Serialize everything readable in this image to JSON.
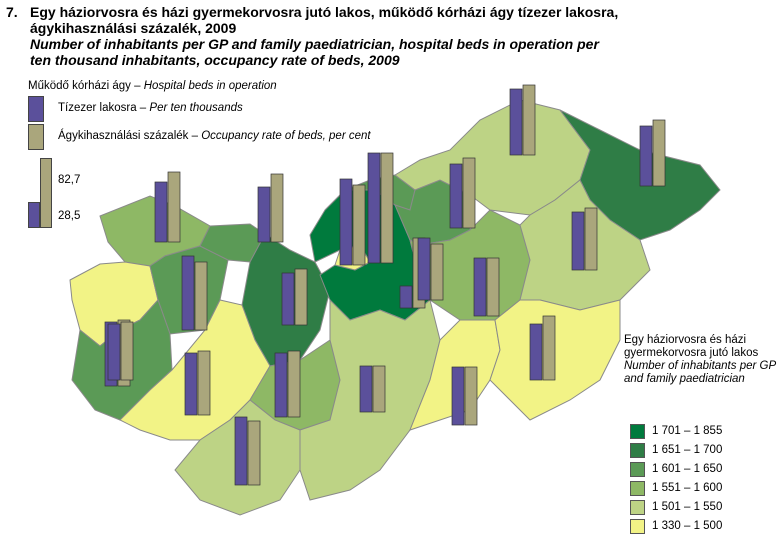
{
  "title": {
    "number": "7.",
    "hu_line1": "Egy háziorvosra és házi gyermekorvosra jutó lakos, működő kórházi ágy tízezer lakosra,",
    "hu_line2": "ágykihasználási százalék, 2009",
    "en_line1": "Number of inhabitants per GP and family paediatrician, hospital beds in operation per",
    "en_line2": "ten thousand inhabitants, occupancy rate of beds, 2009"
  },
  "bar_legend": {
    "header_hu": "Működő kórházi ágy – ",
    "header_en": "Hospital beds in operation",
    "series1_hu": "Tízezer lakosra – ",
    "series1_en": "Per ten thousands",
    "series2_hu": "Ágykihasználási százalék – ",
    "series2_en": "Occupancy rate of beds, per cent",
    "scale_max": "82,7",
    "scale_min": "28,5",
    "color_beds": "#5b509b",
    "color_occupancy": "#aaa67c"
  },
  "choropleth_legend": {
    "title_hu": "Egy háziorvosra és házi gyermekorvosra jutó lakos",
    "title_en": "Number of inhabitants per GP and family paediatrician",
    "classes": [
      {
        "label": "1 701 – 1 855",
        "color": "#007a3d"
      },
      {
        "label": "1 651 – 1 700",
        "color": "#2f7d46"
      },
      {
        "label": "1 601 – 1 650",
        "color": "#5b9a56"
      },
      {
        "label": "1 551 – 1 600",
        "color": "#8eb865"
      },
      {
        "label": "1 501 – 1 550",
        "color": "#bdd385"
      },
      {
        "label": "1 330 – 1 500",
        "color": "#f2f386"
      }
    ]
  },
  "map_colors": {
    "border": "#8a8a8a"
  }
}
